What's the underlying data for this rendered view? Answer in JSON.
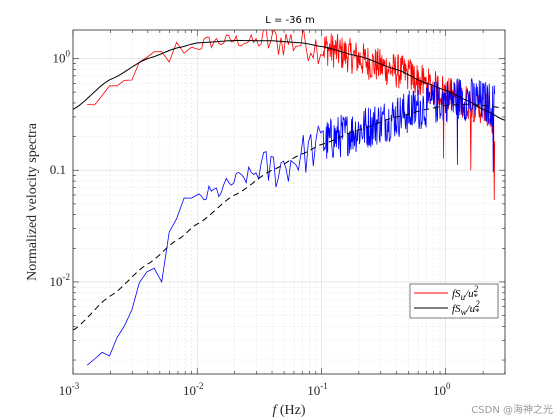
{
  "chart_data": {
    "type": "line",
    "title": "L = -36 m",
    "xlabel": "f (Hz)",
    "ylabel": "Normalized velocity spectra",
    "xscale": "log",
    "yscale": "log",
    "xlim": [
      0.001,
      3
    ],
    "ylim": [
      0.0015,
      1.8
    ],
    "x_ticks": [
      {
        "base": "10",
        "exp": "-3",
        "value": 0.001
      },
      {
        "base": "10",
        "exp": "-2",
        "value": 0.01
      },
      {
        "base": "10",
        "exp": "-1",
        "value": 0.1
      },
      {
        "base": "10",
        "exp": "0",
        "value": 1
      }
    ],
    "y_ticks": [
      {
        "base": "10",
        "exp": "-2",
        "value": 0.01
      },
      {
        "base": "",
        "exp": "",
        "text": "0.1",
        "value": 0.1
      },
      {
        "base": "10",
        "exp": "0",
        "value": 1
      }
    ],
    "grid": true,
    "legend_position": "bottom-right",
    "series": [
      {
        "name": "fS_u/u_*^2",
        "legend_label": "fSu/u*²",
        "color": "#ff0000",
        "style": "measured-noisy",
        "x": [
          0.0013,
          0.0025,
          0.0035,
          0.004,
          0.005,
          0.006,
          0.007,
          0.008,
          0.0095,
          0.012,
          0.015,
          0.02,
          0.03,
          0.05,
          0.08,
          0.12,
          0.2,
          0.3,
          0.5,
          0.7,
          1.0,
          1.4,
          1.8,
          2.2,
          2.5
        ],
        "y": [
          0.37,
          0.58,
          0.85,
          0.98,
          1.1,
          0.97,
          1.35,
          1.2,
          1.25,
          1.4,
          1.42,
          1.45,
          1.4,
          1.45,
          1.35,
          1.2,
          1.0,
          0.85,
          0.72,
          0.58,
          0.5,
          0.42,
          0.38,
          0.35,
          0.2
        ],
        "noise": 0.16
      },
      {
        "name": "fS_w/u_*^2",
        "legend_label": "fSw/u*²",
        "color": "#0000ff",
        "style": "measured-noisy",
        "x": [
          0.0013,
          0.0022,
          0.0027,
          0.0032,
          0.0036,
          0.0042,
          0.0052,
          0.0065,
          0.0075,
          0.0085,
          0.01,
          0.012,
          0.015,
          0.02,
          0.03,
          0.05,
          0.08,
          0.12,
          0.2,
          0.3,
          0.5,
          0.8,
          1.2,
          1.8,
          2.5
        ],
        "y": [
          0.0015,
          0.0028,
          0.0045,
          0.0067,
          0.0096,
          0.011,
          0.012,
          0.037,
          0.055,
          0.05,
          0.052,
          0.06,
          0.065,
          0.08,
          0.095,
          0.11,
          0.15,
          0.19,
          0.23,
          0.27,
          0.33,
          0.4,
          0.45,
          0.42,
          0.38
        ],
        "noise": 0.2
      },
      {
        "name": "model-u",
        "color": "#000000",
        "style": "solid",
        "x": [
          0.001,
          0.002,
          0.004,
          0.007,
          0.01,
          0.02,
          0.04,
          0.07,
          0.1,
          0.2,
          0.4,
          0.7,
          1.0,
          1.5,
          2.0,
          3.0
        ],
        "y": [
          0.35,
          0.65,
          1.0,
          1.25,
          1.38,
          1.45,
          1.44,
          1.38,
          1.28,
          1.05,
          0.8,
          0.6,
          0.52,
          0.42,
          0.35,
          0.28
        ]
      },
      {
        "name": "model-w",
        "color": "#000000",
        "style": "dashed",
        "x": [
          0.001,
          0.002,
          0.004,
          0.007,
          0.01,
          0.02,
          0.04,
          0.07,
          0.1,
          0.2,
          0.4,
          0.7,
          1.0,
          1.5,
          2.0,
          3.0
        ],
        "y": [
          0.0037,
          0.0075,
          0.0145,
          0.024,
          0.033,
          0.06,
          0.1,
          0.14,
          0.17,
          0.23,
          0.3,
          0.35,
          0.38,
          0.39,
          0.38,
          0.36
        ]
      }
    ]
  },
  "watermark": "CSDN @海神之光"
}
